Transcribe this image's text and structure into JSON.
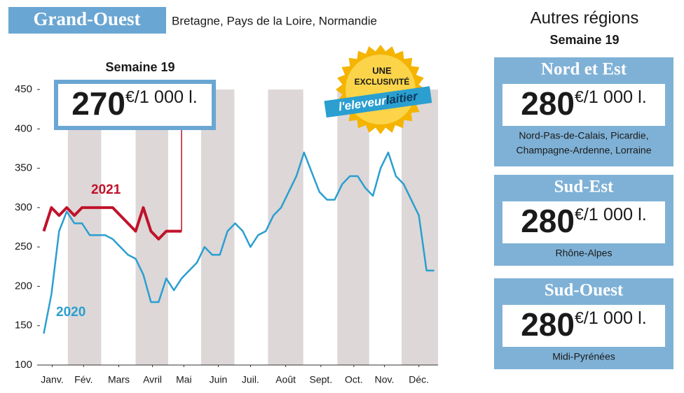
{
  "header": {
    "title": "Grand-Ouest",
    "subtitle": "Bretagne, Pays de la Loire, Normandie"
  },
  "chart_data": {
    "type": "line",
    "x": [
      1,
      2,
      3,
      4,
      5,
      6,
      7,
      8,
      9,
      10,
      11,
      12,
      13,
      14,
      15,
      16,
      17,
      18,
      19,
      20,
      21,
      22,
      23,
      24,
      25,
      26,
      27,
      28,
      29,
      30,
      31,
      32,
      33,
      34,
      35,
      36,
      37,
      38,
      39,
      40,
      41,
      42,
      43,
      44,
      45,
      46,
      47,
      48,
      49,
      50,
      51,
      52
    ],
    "series": [
      {
        "name": "2021",
        "color": "#c0122a",
        "values": [
          270,
          300,
          290,
          300,
          290,
          300,
          300,
          300,
          300,
          300,
          290,
          280,
          270,
          300,
          270,
          260,
          270,
          270,
          270,
          null,
          null,
          null,
          null,
          null,
          null,
          null,
          null,
          null,
          null,
          null,
          null,
          null,
          null,
          null,
          null,
          null,
          null,
          null,
          null,
          null,
          null,
          null,
          null,
          null,
          null,
          null,
          null,
          null,
          null,
          null,
          null,
          null
        ]
      },
      {
        "name": "2020",
        "color": "#2a9fd0",
        "values": [
          140,
          190,
          270,
          295,
          280,
          280,
          265,
          265,
          265,
          260,
          250,
          240,
          235,
          215,
          180,
          180,
          210,
          195,
          210,
          220,
          230,
          250,
          240,
          240,
          270,
          280,
          270,
          250,
          265,
          270,
          290,
          300,
          320,
          340,
          370,
          345,
          320,
          310,
          310,
          330,
          340,
          340,
          325,
          315,
          350,
          370,
          340,
          330,
          310,
          290,
          220,
          220
        ]
      }
    ],
    "xlim": [
      0.5,
      52.5
    ],
    "xticks": [
      {
        "value": 2.1,
        "label": "Janv."
      },
      {
        "value": 6.2,
        "label": "Fév."
      },
      {
        "value": 10.8,
        "label": "Mars"
      },
      {
        "value": 15.2,
        "label": "Avril"
      },
      {
        "value": 19.3,
        "label": "Mai"
      },
      {
        "value": 23.8,
        "label": "Juin"
      },
      {
        "value": 28,
        "label": "Juil."
      },
      {
        "value": 32.6,
        "label": "Août"
      },
      {
        "value": 37.2,
        "label": "Sept."
      },
      {
        "value": 41.5,
        "label": "Oct."
      },
      {
        "value": 45.5,
        "label": "Nov."
      },
      {
        "value": 50,
        "label": "Déc."
      }
    ],
    "ylim": [
      100,
      450
    ],
    "yticks": [
      100,
      150,
      200,
      250,
      300,
      350,
      400,
      450
    ],
    "band_color": "#ddd7d7",
    "grid": false,
    "callout": {
      "label": "Semaine 19",
      "value": "270",
      "unit": "€",
      "suffix": "/1 000 l."
    }
  },
  "badge": {
    "line1": "UNE",
    "line2": "EXCLUSIVITÉ",
    "brand1": "l'eleveur",
    "brand2": "laitier"
  },
  "regions": {
    "title": "Autres régions",
    "subtitle": "Semaine 19",
    "items": [
      {
        "name": "Nord et Est",
        "value": "280",
        "unit": "€",
        "suffix": "/1 000 l.",
        "areas": [
          "Nord-Pas-de-Calais, Picardie,",
          "Champagne-Ardenne, Lorraine"
        ]
      },
      {
        "name": "Sud-Est",
        "value": "280",
        "unit": "€",
        "suffix": "/1 000 l.",
        "areas": [
          "Rhône-Alpes"
        ]
      },
      {
        "name": "Sud-Ouest",
        "value": "280",
        "unit": "€",
        "suffix": "/1 000 l.",
        "areas": [
          "Midi-Pyrénées"
        ]
      }
    ]
  }
}
